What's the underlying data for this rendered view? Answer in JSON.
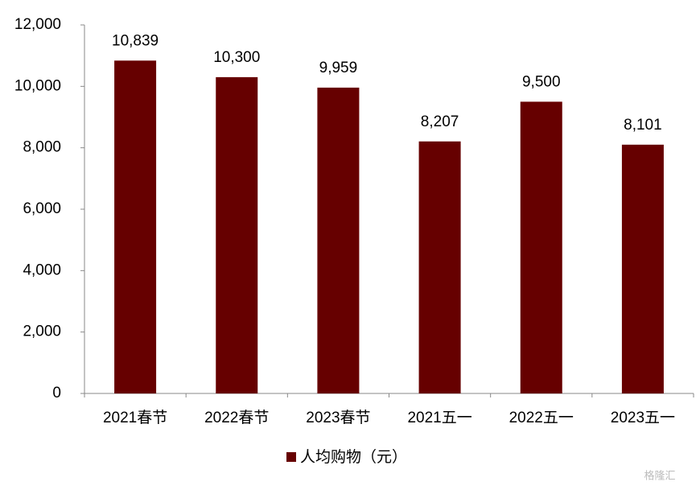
{
  "chart_data": {
    "type": "bar",
    "categories": [
      "2021春节",
      "2022春节",
      "2023春节",
      "2021五一",
      "2022五一",
      "2023五一"
    ],
    "series": [
      {
        "name": "人均购物（元）",
        "color": "#660000",
        "values": [
          10839,
          10300,
          9959,
          8207,
          9500,
          8101
        ],
        "value_labels": [
          "10,839",
          "10,300",
          "9,959",
          "8,207",
          "9,500",
          "8,101"
        ]
      }
    ],
    "ylim": [
      0,
      12000
    ],
    "yticks": [
      0,
      {
        "value": 2000,
        "label": "2,000"
      },
      {
        "value": 4000,
        "label": "4,000"
      },
      {
        "value": 6000,
        "label": "6,000"
      },
      {
        "value": 8000,
        "label": "8,000"
      },
      {
        "value": 10000,
        "label": "10,000"
      },
      {
        "value": 12000,
        "label": "12,000"
      }
    ],
    "legend": "bottom",
    "watermark": "格隆汇"
  }
}
